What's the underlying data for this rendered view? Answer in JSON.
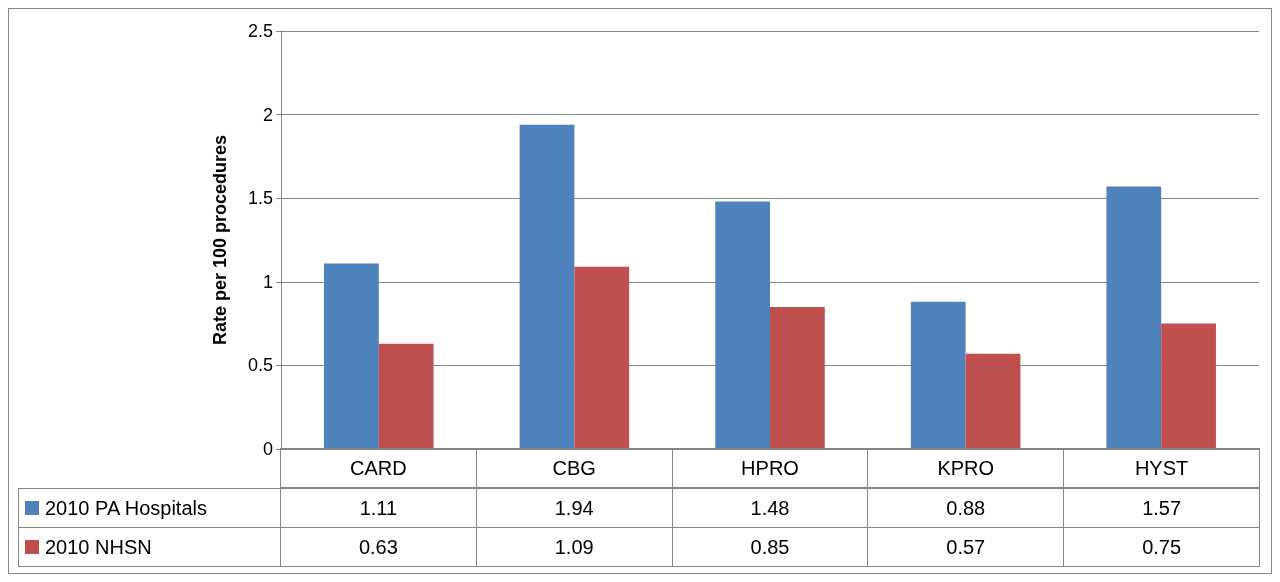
{
  "chart_data": {
    "type": "bar",
    "ylabel": "Rate per 100 procedures",
    "categories": [
      "CARD",
      "CBG",
      "HPRO",
      "KPRO",
      "HYST"
    ],
    "series": [
      {
        "name": "2010 PA Hospitals",
        "color": "#4f81bd",
        "values": [
          1.11,
          1.94,
          1.48,
          0.88,
          1.57
        ]
      },
      {
        "name": "2010 NHSN",
        "color": "#c0504d",
        "values": [
          0.63,
          1.09,
          0.85,
          0.57,
          0.75
        ]
      }
    ],
    "ylim": [
      0,
      2.5
    ],
    "yticks": [
      0,
      0.5,
      1,
      1.5,
      2,
      2.5
    ],
    "grid": "y",
    "legend": "bottom",
    "data_labels": true
  }
}
